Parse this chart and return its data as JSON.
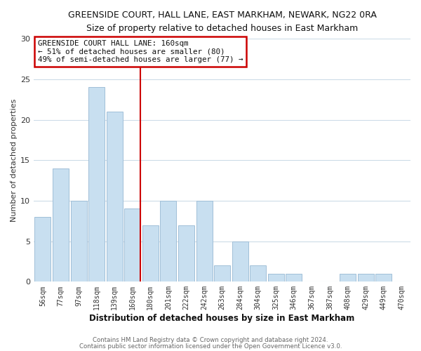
{
  "title": "GREENSIDE COURT, HALL LANE, EAST MARKHAM, NEWARK, NG22 0RA",
  "subtitle": "Size of property relative to detached houses in East Markham",
  "xlabel": "Distribution of detached houses by size in East Markham",
  "ylabel": "Number of detached properties",
  "bar_labels": [
    "56sqm",
    "77sqm",
    "97sqm",
    "118sqm",
    "139sqm",
    "160sqm",
    "180sqm",
    "201sqm",
    "222sqm",
    "242sqm",
    "263sqm",
    "284sqm",
    "304sqm",
    "325sqm",
    "346sqm",
    "367sqm",
    "387sqm",
    "408sqm",
    "429sqm",
    "449sqm",
    "470sqm"
  ],
  "bar_values": [
    8,
    14,
    10,
    24,
    21,
    9,
    7,
    10,
    7,
    10,
    2,
    5,
    2,
    1,
    1,
    0,
    0,
    1,
    1,
    1,
    0
  ],
  "bar_color": "#c8dff0",
  "bar_edge_color": "#a0bfd8",
  "highlight_index": 5,
  "highlight_line_color": "#cc0000",
  "annotation_title": "GREENSIDE COURT HALL LANE: 160sqm",
  "annotation_line1": "← 51% of detached houses are smaller (80)",
  "annotation_line2": "49% of semi-detached houses are larger (77) →",
  "annotation_box_color": "#ffffff",
  "annotation_box_edge_color": "#cc0000",
  "ylim": [
    0,
    30
  ],
  "yticks": [
    0,
    5,
    10,
    15,
    20,
    25,
    30
  ],
  "footer1": "Contains HM Land Registry data © Crown copyright and database right 2024.",
  "footer2": "Contains public sector information licensed under the Open Government Licence v3.0.",
  "bg_color": "#ffffff",
  "grid_color": "#cddce8"
}
